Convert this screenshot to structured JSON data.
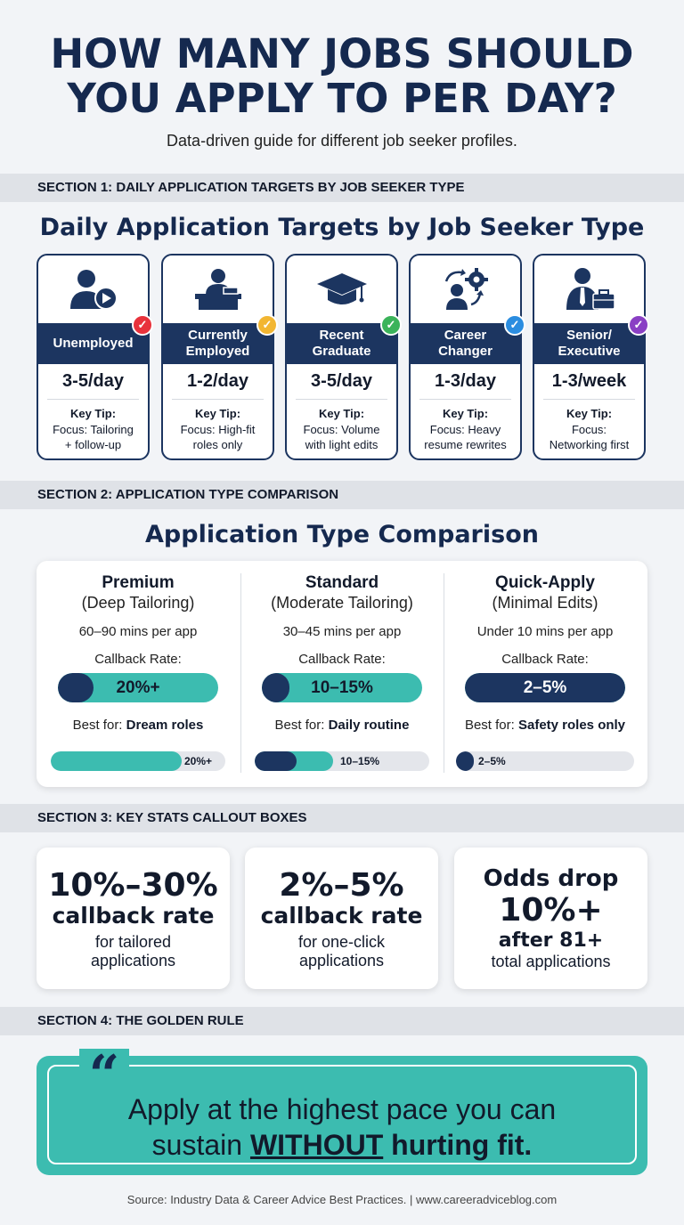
{
  "header": {
    "title_line1": "HOW MANY JOBS SHOULD",
    "title_line2": "YOU APPLY TO PER DAY?",
    "subtitle": "Data-driven guide for different job seeker profiles."
  },
  "section1": {
    "bar_label": "SECTION 1: DAILY APPLICATION TARGETS BY JOB SEEKER TYPE",
    "heading": "Daily Application Targets by Job Seeker Type",
    "cards": [
      {
        "title_line1": "Unemployed",
        "title_line2": "",
        "rate": "3-5/day",
        "tip_heading": "Key Tip:",
        "tip_line1": "Focus: Tailoring",
        "tip_line2": "+ follow-up",
        "icon": "person-play-icon",
        "check_color": "#e8323c"
      },
      {
        "title_line1": "Currently",
        "title_line2": "Employed",
        "rate": "1-2/day",
        "tip_heading": "Key Tip:",
        "tip_line1": "Focus: High-fit",
        "tip_line2": "roles only",
        "icon": "person-desk-icon",
        "check_color": "#f2b632"
      },
      {
        "title_line1": "Recent",
        "title_line2": "Graduate",
        "rate": "3-5/day",
        "tip_heading": "Key Tip:",
        "tip_line1": "Focus: Volume",
        "tip_line2": "with light edits",
        "icon": "graduation-cap-icon",
        "check_color": "#3bb35a"
      },
      {
        "title_line1": "Career",
        "title_line2": "Changer",
        "rate": "1-3/day",
        "tip_heading": "Key Tip:",
        "tip_line1": "Focus: Heavy",
        "tip_line2": "resume rewrites",
        "icon": "person-gear-icon",
        "check_color": "#2b8de0"
      },
      {
        "title_line1": "Senior/",
        "title_line2": "Executive",
        "rate": "1-3/week",
        "tip_heading": "Key Tip:",
        "tip_line1": "Focus:",
        "tip_line2": "Networking first",
        "icon": "executive-briefcase-icon",
        "check_color": "#8a3fc4"
      }
    ]
  },
  "section2": {
    "bar_label": "SECTION 2: APPLICATION TYPE COMPARISON",
    "heading": "Application Type Comparison",
    "callback_label": "Callback Rate:",
    "best_for_prefix": "Best for: ",
    "columns": [
      {
        "name": "Premium",
        "sub": "(Deep Tailoring)",
        "time": "60–90 mins per app",
        "rate": "20%+",
        "rate_fill": 0.22,
        "best": "Dream roles",
        "mini_label": "20%+",
        "mini_fill": 0.75
      },
      {
        "name": "Standard",
        "sub": "(Moderate Tailoring)",
        "time": "30–45 mins per app",
        "rate": "10–15%",
        "rate_fill": 0.17,
        "best": "Daily routine",
        "mini_label": "10–15%",
        "mini_fill": 0.45
      },
      {
        "name": "Quick-Apply",
        "sub": "(Minimal Edits)",
        "time": "Under 10 mins per app",
        "rate": "2–5%",
        "rate_fill": 1.0,
        "best": "Safety roles only",
        "mini_label": "2–5%",
        "mini_fill": 0.1
      }
    ],
    "colors": {
      "navy": "#1c3560",
      "teal": "#3cbcb0"
    }
  },
  "section3": {
    "bar_label": "SECTION 3: KEY STATS CALLOUT BOXES",
    "stats": [
      {
        "line1": "10%–30%",
        "line2": "callback rate",
        "line3": "for tailored",
        "line4": "applications"
      },
      {
        "line1": "2%–5%",
        "line2": "callback rate",
        "line3": "for one-click",
        "line4": "applications"
      },
      {
        "line1": "Odds drop",
        "line2": "10%+",
        "line3": "after 81+",
        "line4": "total applications"
      }
    ]
  },
  "section4": {
    "bar_label": "SECTION 4: THE GOLDEN RULE",
    "quote_mark": "“",
    "quote_line1": "Apply at the highest pace you can",
    "quote_pre": "sustain ",
    "quote_emph": "WITHOUT",
    "quote_post": " hurting fit."
  },
  "footer": {
    "source": "Source: Industry Data & Career Advice Best Practices. | www.careeradviceblog.com"
  }
}
